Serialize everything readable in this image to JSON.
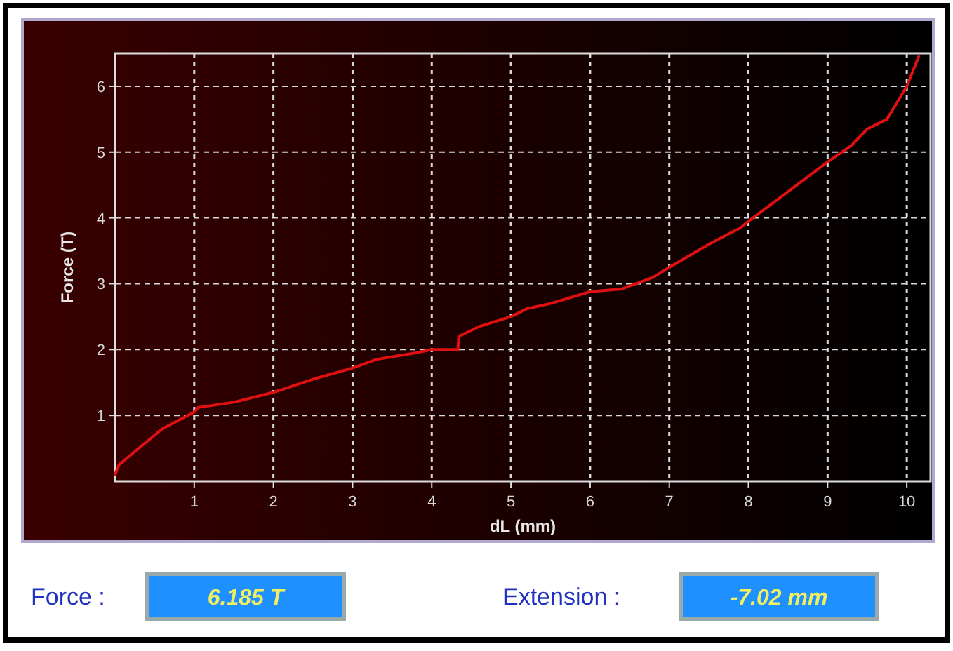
{
  "chart_data": {
    "type": "line",
    "xlabel": "dL (mm)",
    "ylabel": "Force (T)",
    "xlim": [
      0,
      10.3
    ],
    "ylim": [
      0,
      6.5
    ],
    "xticks": [
      1,
      2,
      3,
      4,
      5,
      6,
      7,
      8,
      9,
      10
    ],
    "yticks": [
      1,
      2,
      3,
      4,
      5,
      6
    ],
    "grid": true,
    "series": [
      {
        "color": "#e01010",
        "x": [
          0,
          0.05,
          0.3,
          0.6,
          1,
          1.05,
          1.5,
          2,
          2.5,
          3,
          3.3,
          3.8,
          4,
          4.33,
          4.34,
          4.6,
          5,
          5.2,
          5.5,
          6,
          6.4,
          6.8,
          7,
          7.5,
          7.9,
          8,
          8.5,
          9,
          9.3,
          9.5,
          9.75,
          10,
          10.15
        ],
        "values": [
          0.1,
          0.25,
          0.5,
          0.8,
          1.05,
          1.12,
          1.2,
          1.35,
          1.55,
          1.72,
          1.85,
          1.95,
          2.0,
          2.0,
          2.2,
          2.35,
          2.5,
          2.62,
          2.7,
          2.88,
          2.92,
          3.1,
          3.25,
          3.6,
          3.85,
          3.95,
          4.4,
          4.85,
          5.1,
          5.35,
          5.5,
          6.0,
          6.45
        ]
      }
    ],
    "annotations": [
      "Force :",
      "6.185 T",
      "Extension :",
      "-7.02 mm"
    ]
  }
}
